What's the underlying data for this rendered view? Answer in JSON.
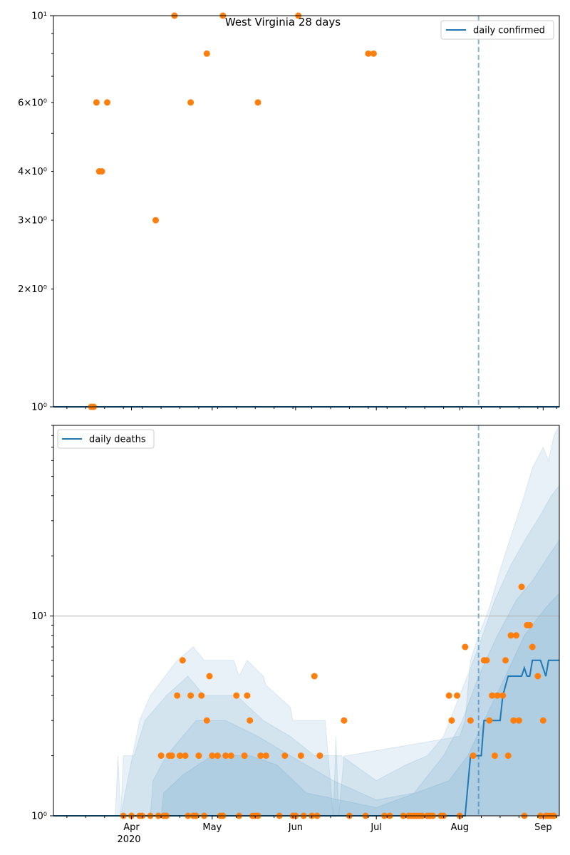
{
  "chart_data": [
    {
      "type": "line",
      "title": "West Virginia 28 days",
      "y_scale": "log",
      "ylim": [
        1,
        10
      ],
      "y_ticks": [
        {
          "value": 1,
          "label": "10⁰"
        },
        {
          "value": 2,
          "label": "2×10⁰"
        },
        {
          "value": 3,
          "label": "3×10⁰"
        },
        {
          "value": 4,
          "label": "4×10⁰"
        },
        {
          "value": 6,
          "label": "6×10⁰"
        },
        {
          "value": 10,
          "label": "10¹"
        }
      ],
      "xlim": [
        "2020-03-03",
        "2020-09-07"
      ],
      "vline": "2020-08-08",
      "legend": {
        "label": "daily confirmed",
        "position": "top-right"
      },
      "line_series": {
        "name": "daily confirmed",
        "x": [
          "2020-03-03",
          "2020-09-07"
        ],
        "values": [
          1,
          1
        ]
      },
      "points": {
        "x": [
          "2020-03-17",
          "2020-03-18",
          "2020-03-19",
          "2020-03-20",
          "2020-03-21",
          "2020-03-23",
          "2020-04-10",
          "2020-04-17",
          "2020-04-23",
          "2020-04-29",
          "2020-05-05",
          "2020-05-18",
          "2020-06-02",
          "2020-06-28",
          "2020-06-30"
        ],
        "values": [
          1,
          1,
          6,
          4,
          4,
          6,
          3,
          10,
          6,
          8,
          10,
          6,
          10,
          8,
          8
        ]
      }
    },
    {
      "type": "line",
      "title": "",
      "y_scale": "log",
      "ylim": [
        1,
        90
      ],
      "y_ticks": [
        {
          "value": 1,
          "label": "10⁰"
        },
        {
          "value": 10,
          "label": "10¹"
        }
      ],
      "x_ticks": [
        {
          "date": "2020-04-01",
          "label": "Apr"
        },
        {
          "date": "2020-05-01",
          "label": "May"
        },
        {
          "date": "2020-06-01",
          "label": "Jun"
        },
        {
          "date": "2020-07-01",
          "label": "Jul"
        },
        {
          "date": "2020-08-01",
          "label": "Aug"
        },
        {
          "date": "2020-09-01",
          "label": "Sep"
        }
      ],
      "year_label": "2020",
      "xlim": [
        "2020-03-03",
        "2020-09-07"
      ],
      "vline": "2020-08-08",
      "legend": {
        "label": "daily deaths",
        "position": "top-left"
      },
      "line_series": {
        "name": "daily deaths",
        "x": [
          "2020-03-03",
          "2020-08-03",
          "2020-08-05",
          "2020-08-09",
          "2020-08-10",
          "2020-08-16",
          "2020-08-17",
          "2020-08-19",
          "2020-08-24",
          "2020-08-25",
          "2020-08-26",
          "2020-08-27",
          "2020-08-28",
          "2020-08-31",
          "2020-09-02",
          "2020-09-03",
          "2020-09-04",
          "2020-09-07"
        ],
        "values": [
          1,
          1,
          2,
          2,
          3,
          3,
          4,
          5,
          5,
          5.5,
          5,
          5,
          6,
          6,
          5,
          6,
          6,
          6
        ]
      },
      "bands": [
        {
          "name": "outer",
          "color": "#1f77b4",
          "opacity": 0.1,
          "x": [
            "2020-03-03",
            "2020-03-26",
            "2020-03-27",
            "2020-03-28",
            "2020-04-04",
            "2020-04-08",
            "2020-04-18",
            "2020-04-24",
            "2020-04-28",
            "2020-05-09",
            "2020-05-11",
            "2020-05-14",
            "2020-05-20",
            "2020-05-21",
            "2020-05-30",
            "2020-05-31",
            "2020-06-12",
            "2020-06-15",
            "2020-06-16",
            "2020-06-17",
            "2020-06-19",
            "2020-06-20",
            "2020-08-01",
            "2020-08-03",
            "2020-08-05",
            "2020-08-08",
            "2020-08-12",
            "2020-08-16",
            "2020-08-20",
            "2020-08-25",
            "2020-08-28",
            "2020-09-01",
            "2020-09-03",
            "2020-09-05",
            "2020-09-07"
          ],
          "lower": [
            1,
            1,
            1,
            1,
            1,
            1,
            1,
            1,
            1,
            1,
            1,
            1,
            1,
            1,
            1,
            1,
            1,
            1,
            1,
            1,
            1,
            1,
            1,
            1,
            1,
            1,
            1,
            1,
            1,
            1,
            1,
            1,
            1,
            1,
            1
          ],
          "upper": [
            1,
            1,
            2,
            1,
            3,
            4,
            6,
            7,
            6,
            6,
            5,
            6,
            5,
            4.5,
            3.5,
            3,
            3,
            1,
            2.5,
            1,
            2,
            2,
            2.5,
            3,
            6,
            8,
            11,
            17,
            25,
            40,
            55,
            70,
            60,
            80,
            90
          ]
        },
        {
          "name": "middle",
          "color": "#1f77b4",
          "opacity": 0.1,
          "x": [
            "2020-03-03",
            "2020-03-28",
            "2020-03-29",
            "2020-04-02",
            "2020-04-06",
            "2020-04-14",
            "2020-04-22",
            "2020-04-28",
            "2020-05-10",
            "2020-05-20",
            "2020-05-30",
            "2020-06-08",
            "2020-06-18",
            "2020-07-01",
            "2020-07-12",
            "2020-07-20",
            "2020-07-26",
            "2020-08-01",
            "2020-08-08",
            "2020-08-14",
            "2020-08-20",
            "2020-08-26",
            "2020-08-31",
            "2020-09-04",
            "2020-09-07"
          ],
          "lower": [
            1,
            1,
            1,
            1,
            1,
            1,
            1,
            1,
            1,
            1,
            1,
            1,
            1,
            1,
            1,
            1,
            1,
            1,
            1,
            1,
            1,
            1,
            1,
            1,
            1
          ],
          "upper": [
            1,
            1,
            2,
            2,
            3,
            4,
            5,
            4,
            4,
            3,
            2.5,
            2,
            2,
            1.5,
            1.8,
            2,
            2.5,
            4,
            7,
            12,
            18,
            25,
            32,
            40,
            45
          ]
        },
        {
          "name": "inner",
          "color": "#1f77b4",
          "opacity": 0.1,
          "x": [
            "2020-03-03",
            "2020-04-08",
            "2020-04-09",
            "2020-04-14",
            "2020-04-25",
            "2020-05-06",
            "2020-05-18",
            "2020-05-30",
            "2020-06-15",
            "2020-07-01",
            "2020-07-15",
            "2020-07-26",
            "2020-08-02",
            "2020-08-08",
            "2020-08-15",
            "2020-08-22",
            "2020-08-28",
            "2020-09-03",
            "2020-09-07"
          ],
          "lower": [
            1,
            1,
            1,
            1,
            1,
            1,
            1,
            1,
            1,
            1,
            1,
            1,
            1,
            1,
            1,
            1,
            1,
            1,
            1
          ],
          "upper": [
            1,
            1,
            1.5,
            2,
            3,
            3,
            2.5,
            2,
            1.5,
            1.2,
            1.3,
            2,
            3,
            5,
            8,
            12,
            15,
            20,
            24
          ]
        },
        {
          "name": "core",
          "color": "#1f77b4",
          "opacity": 0.1,
          "x": [
            "2020-03-03",
            "2020-04-12",
            "2020-04-13",
            "2020-04-20",
            "2020-05-01",
            "2020-05-15",
            "2020-05-25",
            "2020-06-05",
            "2020-07-01",
            "2020-07-28",
            "2020-08-04",
            "2020-08-10",
            "2020-08-18",
            "2020-08-25",
            "2020-09-02",
            "2020-09-07"
          ],
          "lower": [
            1,
            1,
            1,
            1,
            1,
            1,
            1,
            1,
            1,
            1,
            1,
            1,
            1,
            1,
            1,
            1
          ],
          "upper": [
            1,
            1,
            1.3,
            1.6,
            2,
            2,
            1.8,
            1.3,
            1.1,
            1.5,
            2,
            3,
            5,
            8,
            11,
            13
          ]
        }
      ],
      "points": {
        "x": [
          "2020-03-29",
          "2020-04-01",
          "2020-04-04",
          "2020-04-05",
          "2020-04-08",
          "2020-04-11",
          "2020-04-12",
          "2020-04-13",
          "2020-04-14",
          "2020-04-15",
          "2020-04-16",
          "2020-04-18",
          "2020-04-19",
          "2020-04-20",
          "2020-04-21",
          "2020-04-22",
          "2020-04-23",
          "2020-04-24",
          "2020-04-25",
          "2020-04-26",
          "2020-04-27",
          "2020-04-28",
          "2020-04-29",
          "2020-04-30",
          "2020-05-01",
          "2020-05-03",
          "2020-05-04",
          "2020-05-05",
          "2020-05-06",
          "2020-05-08",
          "2020-05-10",
          "2020-05-11",
          "2020-05-13",
          "2020-05-14",
          "2020-05-15",
          "2020-05-16",
          "2020-05-17",
          "2020-05-18",
          "2020-05-19",
          "2020-05-21",
          "2020-05-26",
          "2020-05-28",
          "2020-05-31",
          "2020-06-01",
          "2020-06-03",
          "2020-06-04",
          "2020-06-07",
          "2020-06-08",
          "2020-06-09",
          "2020-06-10",
          "2020-06-19",
          "2020-06-21",
          "2020-06-27",
          "2020-07-04",
          "2020-07-06",
          "2020-07-11",
          "2020-07-13",
          "2020-07-14",
          "2020-07-15",
          "2020-07-16",
          "2020-07-17",
          "2020-07-18",
          "2020-07-20",
          "2020-07-21",
          "2020-07-22",
          "2020-07-25",
          "2020-07-26",
          "2020-07-28",
          "2020-07-29",
          "2020-07-31",
          "2020-08-01",
          "2020-08-03",
          "2020-08-05",
          "2020-08-06",
          "2020-08-10",
          "2020-08-11",
          "2020-08-12",
          "2020-08-13",
          "2020-08-14",
          "2020-08-15",
          "2020-08-17",
          "2020-08-18",
          "2020-08-19",
          "2020-08-20",
          "2020-08-21",
          "2020-08-22",
          "2020-08-23",
          "2020-08-24",
          "2020-08-25",
          "2020-08-26",
          "2020-08-27",
          "2020-08-28",
          "2020-08-30",
          "2020-08-31",
          "2020-09-01",
          "2020-09-02",
          "2020-09-03",
          "2020-09-04",
          "2020-09-05"
        ],
        "values": [
          1,
          1,
          1,
          1,
          1,
          1,
          2,
          1,
          1,
          2,
          2,
          4,
          2,
          6,
          2,
          1,
          4,
          1,
          1,
          2,
          4,
          1,
          3,
          5,
          2,
          2,
          1,
          1,
          2,
          2,
          4,
          1,
          2,
          4,
          3,
          1,
          1,
          1,
          2,
          2,
          1,
          2,
          1,
          1,
          2,
          1,
          1,
          5,
          1,
          2,
          3,
          1,
          1,
          1,
          1,
          1,
          1,
          1,
          1,
          1,
          1,
          1,
          1,
          1,
          1,
          1,
          1,
          4,
          3,
          4,
          1,
          7,
          3,
          2,
          6,
          6,
          3,
          4,
          2,
          4,
          4,
          6,
          2,
          8,
          3,
          8,
          3,
          14,
          1,
          9,
          9,
          7,
          5,
          1,
          3,
          1,
          1,
          1,
          1
        ]
      }
    }
  ]
}
